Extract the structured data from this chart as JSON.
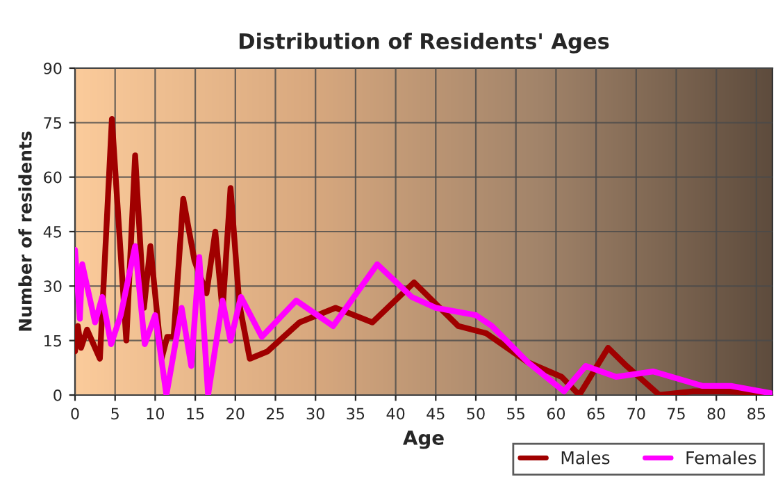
{
  "chart_data": {
    "type": "line",
    "title": "Distribution of Residents' Ages",
    "xlabel": "Age",
    "ylabel": "Number of residents",
    "xlim": [
      0,
      87
    ],
    "xticks": [
      0,
      5,
      10,
      15,
      20,
      25,
      30,
      35,
      40,
      45,
      50,
      55,
      60,
      65,
      70,
      75,
      80,
      85
    ],
    "ylim": [
      0,
      90
    ],
    "yticks": [
      0,
      15,
      30,
      45,
      60,
      75,
      90
    ],
    "grid": true,
    "legend": "bottom right",
    "marker": "none",
    "line_style": "solid",
    "series": [
      {
        "name": "Males",
        "color": "#a00000",
        "x": [
          0,
          0.35,
          0.75,
          1.5,
          3.1,
          4.6,
          6.4,
          7.5,
          8.6,
          9.4,
          10.8,
          11.5,
          12.3,
          13.5,
          14.9,
          16.4,
          17.5,
          18.4,
          19.4,
          20.5,
          21.8,
          24,
          28,
          32.5,
          37.1,
          42.3,
          47.8,
          51.3,
          56.5,
          60.7,
          62.9,
          66.5,
          68.8,
          72.9,
          77,
          81,
          86.8
        ],
        "values": [
          12,
          19,
          13,
          18,
          10,
          76,
          15,
          66,
          24,
          41,
          10,
          16,
          16,
          54,
          37,
          28,
          45,
          23,
          57,
          25,
          10,
          12,
          20,
          24,
          20,
          31,
          19,
          17,
          9,
          5,
          0,
          13,
          8,
          0,
          1,
          1,
          0.5
        ]
      },
      {
        "name": "Females",
        "color": "#ff00ff",
        "x": [
          0,
          0.6,
          0.9,
          2.5,
          3.4,
          4.5,
          5.7,
          7.5,
          8.7,
          10.0,
          11.4,
          13.3,
          14.5,
          15.5,
          16.6,
          18.4,
          19.4,
          20.7,
          23.3,
          27.6,
          32.2,
          37.7,
          42,
          45,
          50,
          52,
          56.5,
          61,
          63.7,
          67.5,
          72.1,
          78.3,
          81.8,
          86.8
        ],
        "values": [
          40,
          21,
          36,
          20,
          27,
          14,
          22,
          41,
          14,
          22,
          0,
          24,
          8,
          38,
          0,
          26,
          15,
          27,
          16,
          26,
          19,
          36,
          27,
          24,
          22,
          19,
          9,
          1,
          8,
          5,
          6.5,
          2.5,
          2.5,
          0.5
        ]
      }
    ]
  }
}
